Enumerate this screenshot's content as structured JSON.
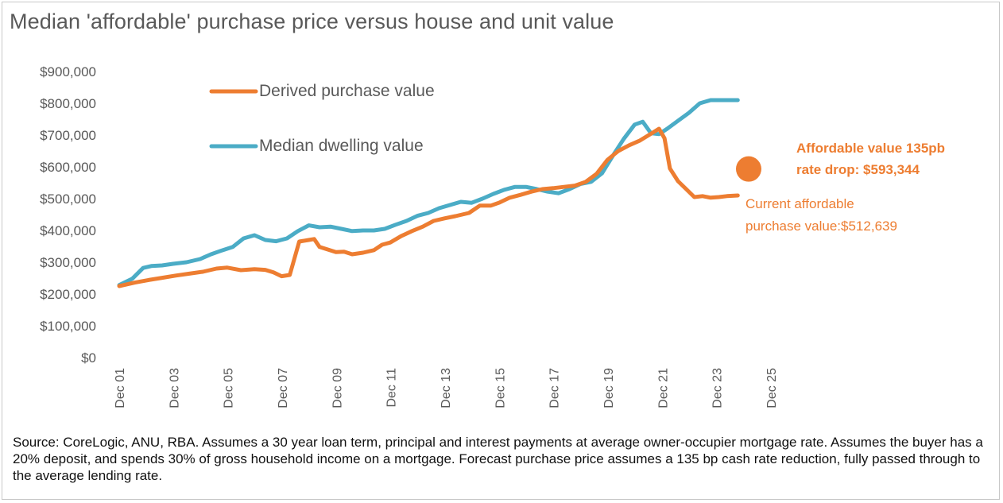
{
  "title": "Median 'affordable' purchase price versus house and unit value",
  "source_note": "Source: CoreLogic, ANU, RBA. Assumes a 30 year loan term, principal and interest payments at average owner-occupier mortgage rate. Assumes the buyer has a 20% deposit, and spends 30% of gross household income on a mortgage. Forecast purchase price assumes a 135 bp cash rate reduction, fully passed through to the average lending rate.",
  "colors": {
    "derived": "#ED7D31",
    "median": "#4BACC6",
    "text": "#595959"
  },
  "annotations": {
    "forecast_line1": "Affordable value 135pb",
    "forecast_line2": "rate drop: $593,344",
    "current_line1": "Current affordable",
    "current_line2": "purchase value:$512,639"
  },
  "chart_data": {
    "type": "line",
    "title": "Median 'affordable' purchase price versus house and unit value",
    "xlabel": "",
    "ylabel": "",
    "y_ticks": [
      "$0",
      "$100,000",
      "$200,000",
      "$300,000",
      "$400,000",
      "$500,000",
      "$600,000",
      "$700,000",
      "$800,000",
      "$900,000"
    ],
    "ylim": [
      0,
      900000
    ],
    "x_ticks": [
      "Dec 01",
      "Dec 03",
      "Dec 05",
      "Dec 07",
      "Dec 09",
      "Dec 11",
      "Dec 13",
      "Dec 15",
      "Dec 17",
      "Dec 19",
      "Dec 21",
      "Dec 23",
      "Dec 25"
    ],
    "xlim": [
      2001.92,
      2025.92
    ],
    "grid": false,
    "legend_position": "top-left",
    "series": [
      {
        "name": "Derived purchase value",
        "color": "#ED7D31",
        "points": [
          [
            2001.92,
            225000
          ],
          [
            2002.5,
            236000
          ],
          [
            2003.0,
            244000
          ],
          [
            2003.5,
            251000
          ],
          [
            2004.0,
            258000
          ],
          [
            2004.5,
            264000
          ],
          [
            2005.0,
            270000
          ],
          [
            2005.5,
            280000
          ],
          [
            2005.9,
            283000
          ],
          [
            2006.4,
            275000
          ],
          [
            2006.9,
            278000
          ],
          [
            2007.3,
            276000
          ],
          [
            2007.6,
            268000
          ],
          [
            2007.9,
            256000
          ],
          [
            2008.2,
            260000
          ],
          [
            2008.55,
            365000
          ],
          [
            2008.9,
            370000
          ],
          [
            2009.1,
            373000
          ],
          [
            2009.3,
            348000
          ],
          [
            2009.6,
            340000
          ],
          [
            2009.9,
            332000
          ],
          [
            2010.2,
            333000
          ],
          [
            2010.5,
            325000
          ],
          [
            2010.9,
            330000
          ],
          [
            2011.3,
            338000
          ],
          [
            2011.6,
            355000
          ],
          [
            2011.9,
            362000
          ],
          [
            2012.3,
            382000
          ],
          [
            2012.7,
            398000
          ],
          [
            2013.1,
            412000
          ],
          [
            2013.5,
            430000
          ],
          [
            2013.9,
            438000
          ],
          [
            2014.3,
            445000
          ],
          [
            2014.8,
            455000
          ],
          [
            2015.2,
            478000
          ],
          [
            2015.6,
            478000
          ],
          [
            2015.9,
            487000
          ],
          [
            2016.3,
            503000
          ],
          [
            2016.7,
            512000
          ],
          [
            2017.1,
            522000
          ],
          [
            2017.5,
            530000
          ],
          [
            2017.9,
            533000
          ],
          [
            2018.3,
            537000
          ],
          [
            2018.7,
            541000
          ],
          [
            2019.1,
            553000
          ],
          [
            2019.5,
            578000
          ],
          [
            2019.9,
            622000
          ],
          [
            2020.3,
            650000
          ],
          [
            2020.7,
            668000
          ],
          [
            2021.1,
            683000
          ],
          [
            2021.5,
            704000
          ],
          [
            2021.8,
            720000
          ],
          [
            2022.0,
            690000
          ],
          [
            2022.2,
            595000
          ],
          [
            2022.5,
            555000
          ],
          [
            2022.8,
            530000
          ],
          [
            2023.1,
            505000
          ],
          [
            2023.4,
            508000
          ],
          [
            2023.7,
            503000
          ],
          [
            2024.0,
            505000
          ],
          [
            2024.3,
            508000
          ],
          [
            2024.7,
            510000
          ]
        ]
      },
      {
        "name": "Median dwelling value",
        "color": "#4BACC6",
        "points": [
          [
            2001.92,
            228000
          ],
          [
            2002.4,
            248000
          ],
          [
            2002.8,
            282000
          ],
          [
            2003.1,
            288000
          ],
          [
            2003.5,
            290000
          ],
          [
            2003.9,
            295000
          ],
          [
            2004.4,
            300000
          ],
          [
            2004.9,
            310000
          ],
          [
            2005.3,
            325000
          ],
          [
            2005.7,
            337000
          ],
          [
            2006.1,
            348000
          ],
          [
            2006.5,
            375000
          ],
          [
            2006.9,
            385000
          ],
          [
            2007.3,
            370000
          ],
          [
            2007.7,
            366000
          ],
          [
            2008.1,
            375000
          ],
          [
            2008.5,
            398000
          ],
          [
            2008.9,
            416000
          ],
          [
            2009.3,
            410000
          ],
          [
            2009.7,
            412000
          ],
          [
            2010.1,
            405000
          ],
          [
            2010.5,
            398000
          ],
          [
            2010.9,
            400000
          ],
          [
            2011.3,
            400000
          ],
          [
            2011.7,
            405000
          ],
          [
            2012.1,
            418000
          ],
          [
            2012.5,
            430000
          ],
          [
            2012.9,
            446000
          ],
          [
            2013.3,
            455000
          ],
          [
            2013.7,
            470000
          ],
          [
            2014.1,
            480000
          ],
          [
            2014.5,
            490000
          ],
          [
            2014.9,
            487000
          ],
          [
            2015.3,
            500000
          ],
          [
            2015.7,
            515000
          ],
          [
            2016.1,
            528000
          ],
          [
            2016.5,
            537000
          ],
          [
            2016.9,
            537000
          ],
          [
            2017.3,
            530000
          ],
          [
            2017.7,
            522000
          ],
          [
            2018.1,
            517000
          ],
          [
            2018.5,
            530000
          ],
          [
            2018.9,
            546000
          ],
          [
            2019.3,
            553000
          ],
          [
            2019.7,
            580000
          ],
          [
            2020.1,
            635000
          ],
          [
            2020.5,
            688000
          ],
          [
            2020.9,
            733000
          ],
          [
            2021.2,
            742000
          ],
          [
            2021.5,
            706000
          ],
          [
            2021.8,
            703000
          ],
          [
            2022.1,
            720000
          ],
          [
            2022.5,
            745000
          ],
          [
            2022.9,
            770000
          ],
          [
            2023.3,
            800000
          ],
          [
            2023.7,
            810000
          ],
          [
            2024.1,
            810000
          ],
          [
            2024.7,
            810000
          ]
        ]
      }
    ],
    "forecast_point": {
      "label": "Affordable value 135pb rate drop: $593,344",
      "x": 2025.1,
      "y": 593344,
      "color": "#ED7D31"
    }
  }
}
